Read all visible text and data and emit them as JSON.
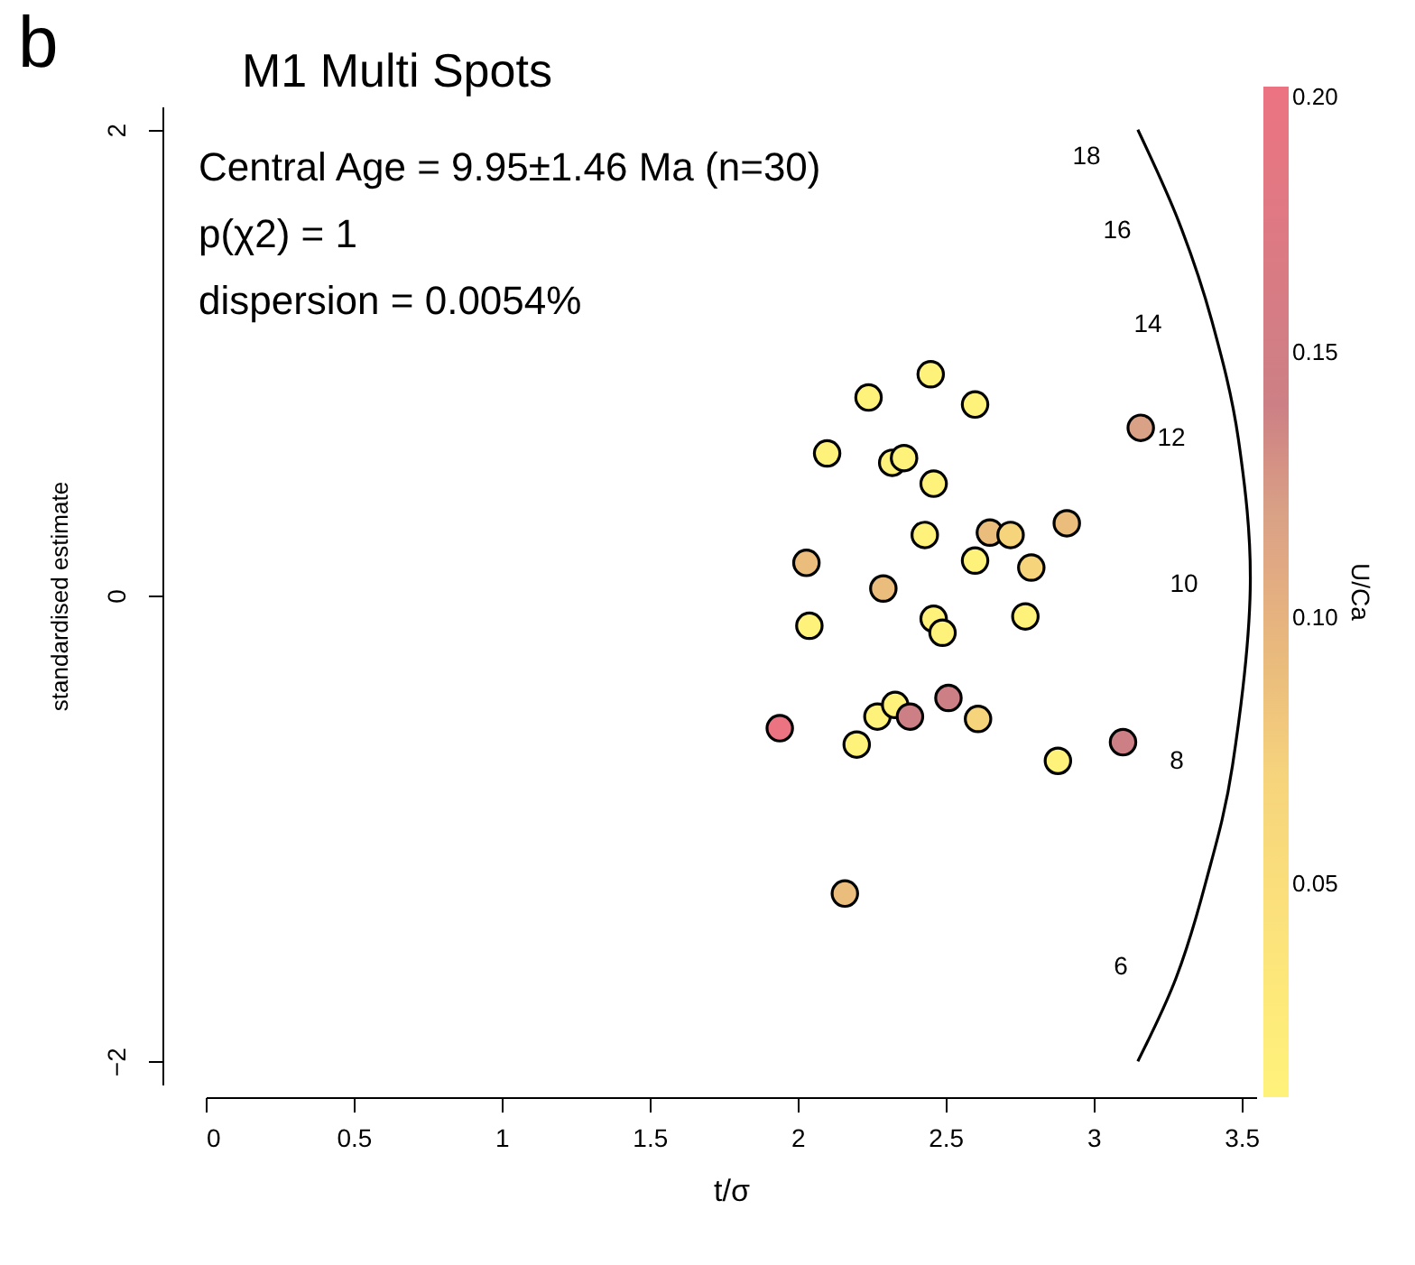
{
  "chart_data": {
    "type": "scatter",
    "title": "M1 Multi Spots",
    "xlabel": "t/σ",
    "ylabel": "standardised estimate",
    "clabel": "U/Ca",
    "annotations": [
      "b",
      "Central Age = 9.95±1.46 Ma (n=30)",
      "p(χ2) = 1",
      "dispersion = 0.0054%",
      "18",
      "16",
      "14",
      "12",
      "10",
      "8",
      "6"
    ],
    "xlim": [
      0,
      3.55
    ],
    "xticks": [
      0,
      0.5,
      1,
      1.5,
      2,
      2.5,
      3,
      3.5
    ],
    "ylim": [
      -2.1,
      2.1
    ],
    "yticks": [
      {
        "value": -2,
        "label": "−2"
      },
      0,
      2
    ],
    "clim": [
      0.01,
      0.2
    ],
    "cticks": [
      {
        "value": 0.05,
        "label": "0.05"
      },
      {
        "value": 0.1,
        "label": "0.10"
      },
      0.15,
      {
        "value": 0.2,
        "label": "0.20"
      }
    ],
    "series": [
      {
        "type": "scatter",
        "marker": "circle",
        "x": [
          2.45,
          2.24,
          2.6,
          3.16,
          2.1,
          2.32,
          2.36,
          2.46,
          2.43,
          2.65,
          2.72,
          2.91,
          2.03,
          2.6,
          2.79,
          2.29,
          2.04,
          2.46,
          2.49,
          2.77,
          1.94,
          2.2,
          2.27,
          2.33,
          2.38,
          2.51,
          2.61,
          2.88,
          3.1,
          2.16
        ],
        "values": [
          0.95,
          0.85,
          0.82,
          0.72,
          0.61,
          0.57,
          0.59,
          0.48,
          0.26,
          0.27,
          0.26,
          0.31,
          0.14,
          0.15,
          0.12,
          0.03,
          -0.13,
          -0.1,
          -0.16,
          -0.09,
          -0.57,
          -0.64,
          -0.52,
          -0.47,
          -0.52,
          -0.44,
          -0.53,
          -0.71,
          -0.63,
          -1.28
        ],
        "cvalues": [
          0.01,
          0.01,
          0.01,
          0.12,
          0.01,
          0.01,
          0.01,
          0.01,
          0.01,
          0.09,
          0.07,
          0.09,
          0.09,
          0.01,
          0.07,
          0.09,
          0.01,
          0.01,
          0.01,
          0.01,
          0.2,
          0.01,
          0.01,
          0.01,
          0.14,
          0.14,
          0.07,
          0.01,
          0.14,
          0.09
        ],
        "colors": [
          "#fff27a",
          "#fff27a",
          "#fff27a",
          "#d9a186",
          "#fff27a",
          "#fff27a",
          "#fff27a",
          "#fff27a",
          "#fff27a",
          "#eabd7c",
          "#f6d47c",
          "#eabd7c",
          "#eabd7c",
          "#fff27a",
          "#f6d47c",
          "#eabd7c",
          "#fff27a",
          "#fff27a",
          "#fff27a",
          "#fff27a",
          "#ec7382",
          "#fff27a",
          "#fff27a",
          "#fff27a",
          "#cc8085",
          "#cc8085",
          "#f6d47c",
          "#fff27a",
          "#cc8085",
          "#eabd7c"
        ]
      },
      {
        "type": "line",
        "color": "#000000",
        "x": [
          3.15,
          3.29,
          3.4,
          3.49,
          3.53,
          3.47,
          3.38,
          3.28,
          3.15
        ],
        "values": [
          2.0,
          1.6,
          1.18,
          0.67,
          0.03,
          -0.73,
          -1.23,
          -1.64,
          -2.0
        ]
      }
    ]
  }
}
